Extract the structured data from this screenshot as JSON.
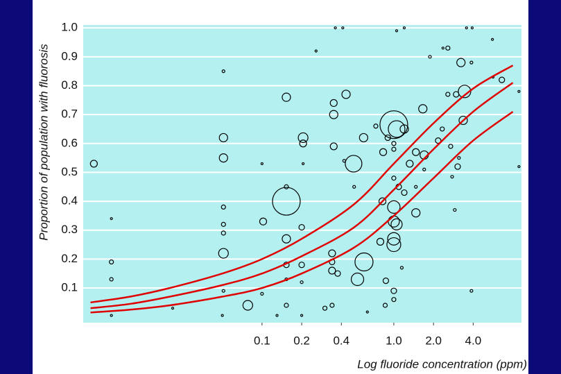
{
  "chart_data": {
    "type": "scatter",
    "x_label": "Log fluoride concentration (ppm)",
    "y_label": "Proportion of population with fluorosis",
    "xscale": "log",
    "xlim": [
      0.0044,
      9.3
    ],
    "ylim": [
      -0.02,
      1.01
    ],
    "xticks": [
      0.1,
      0.2,
      0.4,
      {
        "value": 1,
        "label": "1.0"
      },
      {
        "value": 2,
        "label": "2.0"
      },
      {
        "value": 4,
        "label": "4.0"
      }
    ],
    "yticks": [
      0.1,
      0.2,
      0.3,
      0.4,
      0.5,
      0.6,
      0.7,
      0.8,
      0.9,
      {
        "value": 1,
        "label": "1.0"
      }
    ],
    "grid": true,
    "plot_color": "#b4f0f0",
    "points": {
      "color": "#000000",
      "x": [
        0.0053,
        0.0072,
        0.0072,
        0.0072,
        0.0072,
        0.051,
        0.051,
        0.051,
        0.051,
        0.051,
        0.051,
        0.051,
        0.051,
        0.1,
        0.102,
        0.078,
        0.1,
        0.153,
        0.153,
        0.153,
        0.153,
        0.153,
        0.153,
        0.153,
        0.205,
        0.205,
        0.2,
        0.2,
        0.2,
        0.205,
        0.257,
        0.35,
        0.35,
        0.35,
        0.34,
        0.34,
        0.34,
        0.34,
        0.375,
        0.3,
        0.434,
        0.495,
        0.594,
        0.53,
        0.5,
        0.42,
        0.59,
        0.73,
        1.0,
        1.05,
        1.2,
        0.83,
        0.9,
        1.0,
        1.0,
        1.0,
        1.09,
        1.2,
        1.32,
        1.47,
        1.7,
        1.66,
        1.0,
        1.0,
        1.05,
        1.0,
        1.0,
        1.47,
        0.82,
        0.79,
        0.87,
        1.0,
        1.0,
        0.86,
        1.15,
        1.7,
        1.47,
        1.88,
        2.36,
        2.57,
        2.57,
        2.97,
        3.44,
        3.23,
        3.36,
        3.05,
        3.12,
        2.7,
        2.17,
        2.33,
        2.77,
        2.9,
        3.88,
        3.88,
        5.66,
        6.6,
        5.6,
        8.9,
        8.9,
        0.36,
        0.41,
        1.05,
        1.2,
        3.56,
        3.93,
        0.021,
        0.05,
        0.13,
        0.2,
        0.63
      ],
      "y": [
        0.53,
        0.34,
        0.19,
        0.13,
        0.005,
        0.85,
        0.62,
        0.55,
        0.38,
        0.32,
        0.29,
        0.22,
        0.09,
        0.53,
        0.33,
        0.04,
        0.08,
        0.76,
        0.4,
        0.45,
        0.27,
        0.18,
        0.13,
        0.04,
        0.62,
        0.6,
        0.31,
        0.18,
        0.12,
        0.53,
        0.92,
        0.74,
        0.7,
        0.59,
        0.22,
        0.19,
        0.16,
        0.04,
        0.15,
        0.03,
        0.77,
        0.53,
        0.19,
        0.13,
        0.45,
        0.54,
        0.62,
        0.66,
        0.665,
        0.65,
        0.65,
        0.57,
        0.62,
        0.6,
        0.58,
        0.48,
        0.45,
        0.43,
        0.53,
        0.57,
        0.56,
        0.72,
        0.38,
        0.33,
        0.32,
        0.27,
        0.25,
        0.36,
        0.4,
        0.26,
        0.125,
        0.09,
        0.06,
        0.04,
        0.17,
        0.51,
        0.45,
        0.9,
        0.93,
        0.93,
        0.77,
        0.77,
        0.78,
        0.88,
        0.68,
        0.52,
        0.55,
        0.59,
        0.61,
        0.65,
        0.485,
        0.37,
        0.88,
        0.09,
        0.83,
        0.82,
        0.96,
        0.78,
        0.52,
        1.0,
        1.0,
        0.99,
        1.0,
        1.0,
        1.0,
        0.03,
        0.005,
        0.005,
        0.005,
        0.017
      ],
      "sizes": [
        5,
        1.5,
        3,
        2.5,
        1.5,
        2,
        6,
        6,
        3,
        3,
        3,
        7,
        2,
        1.5,
        5,
        7,
        2,
        6,
        20,
        3,
        6,
        4,
        2,
        3,
        7,
        5,
        4,
        4,
        2,
        1.5,
        1.5,
        5,
        6,
        5,
        5,
        4,
        5,
        3,
        4,
        3,
        6,
        12,
        13,
        9,
        2,
        2,
        6,
        3,
        20,
        12,
        6,
        5,
        4,
        3,
        3,
        3,
        4,
        4,
        5,
        5,
        6,
        6,
        9,
        8,
        8,
        9,
        10,
        6,
        5,
        5,
        4,
        4,
        3,
        3,
        2,
        2,
        2,
        2,
        1.5,
        3,
        3,
        4,
        9,
        6,
        6,
        4,
        2,
        3,
        4,
        3,
        2,
        2,
        2,
        2,
        1.5,
        4,
        1.5,
        1.5,
        1.5,
        1.5,
        1.5,
        1.5,
        1.5,
        1.5,
        1.5,
        1.5,
        1.5,
        1.5,
        1.5,
        1.5
      ]
    },
    "series": [
      {
        "color": "#e00000",
        "x": [
          0.005,
          0.01,
          0.02,
          0.05,
          0.1,
          0.2,
          0.5,
          1,
          2,
          4,
          8
        ],
        "values": [
          0.05,
          0.07,
          0.1,
          0.15,
          0.2,
          0.27,
          0.39,
          0.53,
          0.67,
          0.79,
          0.87
        ]
      },
      {
        "color": "#e00000",
        "x": [
          0.005,
          0.01,
          0.02,
          0.05,
          0.1,
          0.2,
          0.5,
          1,
          2,
          4,
          8
        ],
        "values": [
          0.03,
          0.045,
          0.07,
          0.11,
          0.15,
          0.21,
          0.31,
          0.44,
          0.58,
          0.71,
          0.81
        ]
      },
      {
        "color": "#e00000",
        "x": [
          0.005,
          0.01,
          0.02,
          0.05,
          0.1,
          0.2,
          0.5,
          1,
          2,
          4,
          8
        ],
        "values": [
          0.015,
          0.025,
          0.04,
          0.07,
          0.1,
          0.15,
          0.24,
          0.35,
          0.48,
          0.61,
          0.71
        ]
      }
    ]
  }
}
